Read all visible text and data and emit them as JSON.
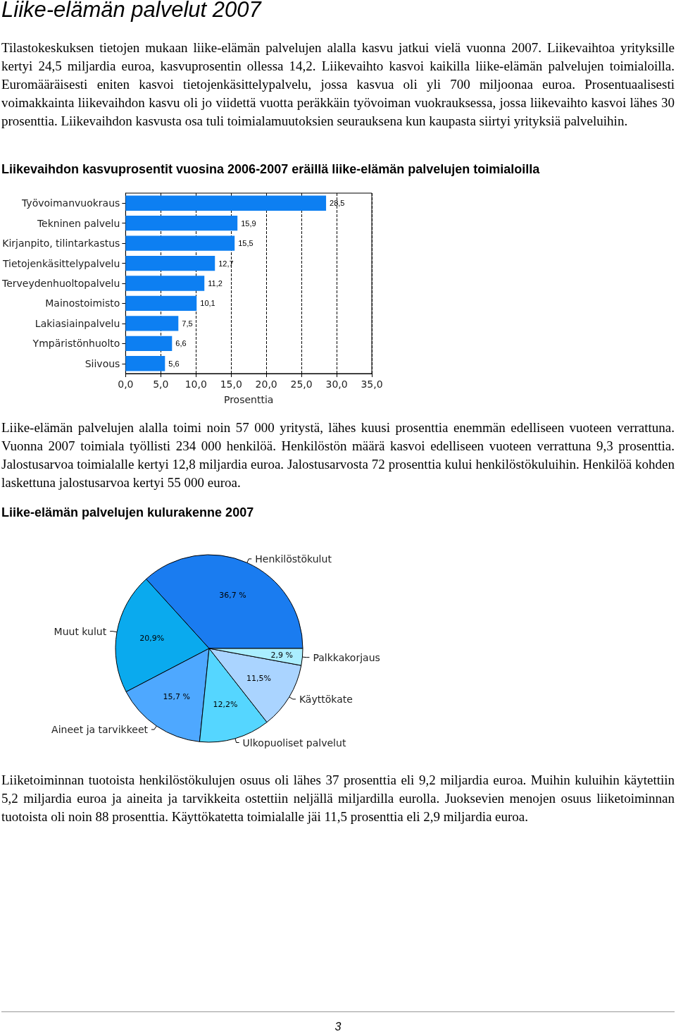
{
  "chart_data": [
    {
      "type": "bar",
      "orientation": "horizontal",
      "title": "Liikevaihdon kasvuprosentit vuosina 2006-2007 eräillä liike-elämän palvelujen toimialoilla",
      "annotations": [
        "Liike-elämän palvelut 2007",
        "Tilastokeskuksen tietojen mukaan liike-elämän palvelujen alalla kasvu jatkui vielä vuonna 2007. Liikevaihtoa yrityksille kertyi 24,5 miljardia euroa, kasvuprosentin ollessa 14,2. Liikevaihto kasvoi kaikilla liike-elämän palvelujen toimialoilla. Euromääräisesti eniten kasvoi tietojenkäsittelypalvelu, jossa kasvua oli yli 700 miljoonaa euroa. Prosentuaalisesti voimakkainta liikevaihdon kasvu oli jo viidettä vuotta peräkkäin työvoiman vuokrauksessa, jossa liikevaihto kasvoi lähes 30 prosenttia. Liikevaihdon kasvusta osa tuli toimialamuutoksien seurauksena kun kaupasta siirtyi yrityksiä palveluihin."
      ],
      "categories": [
        "Työvoimanvuokraus",
        "Tekninen palvelu",
        "Kirjanpito, tilintarkastus",
        "Tietojenkäsittelypalvelu",
        "Terveydenhuoltopalvelu",
        "Mainostoimisto",
        "Lakiasiainpalvelu",
        "Ympäristönhuolto",
        "Siivous"
      ],
      "values": [
        28.5,
        15.9,
        15.5,
        12.7,
        11.2,
        10.1,
        7.5,
        6.6,
        5.6
      ],
      "value_labels": [
        "28,5",
        "15,9",
        "15,5",
        "12,7",
        "11,2",
        "10,1",
        "7,5",
        "6,6",
        "5,6"
      ],
      "color": "#0d7ff2",
      "xlabel": "Prosenttia",
      "xlim": [
        0,
        35
      ],
      "xticks": [
        {
          "value": 0,
          "label": "0,0"
        },
        {
          "value": 5,
          "label": "5,0"
        },
        {
          "value": 10,
          "label": "10,0"
        },
        {
          "value": 15,
          "label": "15,0"
        },
        {
          "value": 20,
          "label": "20,0"
        },
        {
          "value": 25,
          "label": "25,0"
        },
        {
          "value": 30,
          "label": "30,0"
        },
        {
          "value": 35,
          "label": "35,0"
        }
      ],
      "grid": "x",
      "legend": false
    },
    {
      "type": "pie",
      "title": "Liike-elämän palvelujen kulurakenne 2007",
      "annotations": [
        "Liike-elämän palvelujen alalla toimi noin 57 000 yritystä, lähes kuusi prosenttia enemmän edelliseen vuoteen verrattuna. Vuonna 2007 toimiala työllisti 234 000 henkilöä. Henkilöstön määrä kasvoi edelliseen vuoteen verrattuna 9,3 prosenttia. Jalostusarvoa toimialalle kertyi 12,8 miljardia euroa. Jalostusarvosta 72 prosenttia kului henkilöstökuluihin. Henkilöä kohden laskettuna jalostusarvoa kertyi 55 000 euroa.",
        "Liiketoiminnan tuotoista henkilöstökulujen osuus oli lähes 37 prosenttia eli 9,2 miljardia euroa. Muihin kuluihin käytettiin 5,2 miljardia euroa ja aineita ja tarvikkeita ostettiin neljällä miljardilla eurolla. Juoksevien menojen osuus liiketoiminnan tuotoista oli noin 88 prosenttia. Käyttökatetta toimialalle jäi 11,5 prosenttia eli 2,9 miljardia euroa.",
        "3"
      ],
      "categories": [
        "Henkilöstökulut",
        "Muut kulut",
        "Aineet ja tarvikkeet",
        "Ulkopuoliset palvelut",
        "Käyttökate",
        "Palkkakorjaus"
      ],
      "values": [
        36.7,
        20.9,
        15.7,
        12.2,
        11.5,
        2.9
      ],
      "value_labels": [
        "36,7 %",
        "20,9%",
        "15,7 %",
        "12,2%",
        "11,5%",
        "2,9 %"
      ],
      "colors": [
        "#1a7cf0",
        "#0aaaee",
        "#4ea8ff",
        "#55d6ff",
        "#aad4ff",
        "#aaeeff"
      ],
      "legend": false
    }
  ]
}
